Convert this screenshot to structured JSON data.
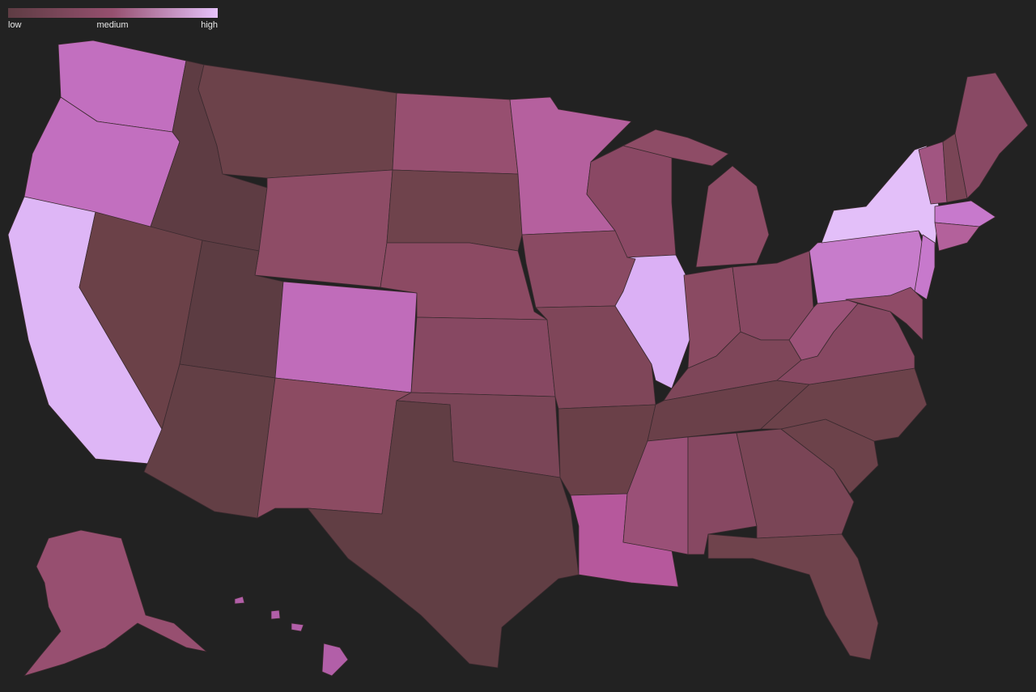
{
  "legend": {
    "labels": [
      "low",
      "medium",
      "high"
    ],
    "colors": [
      "#5e3c43",
      "#96506f",
      "#e6c2fb"
    ]
  },
  "region_colors": [
    "#c26fbf",
    "#c26fbf",
    "#deb6f6",
    "#5e3c43",
    "#6c424a",
    "#8e4c66",
    "#6b4148",
    "#5c3c42",
    "#633f45",
    "#c06cba",
    "#8c4b62",
    "#974f70",
    "#6f434c",
    "#8c4a63",
    "#874862",
    "#7a4557",
    "#613e44",
    "#b5609e",
    "#8a4a63",
    "#7f4659",
    "#6a4048",
    "#b6589c",
    "#8a4864",
    "#dbb0f5",
    "#8e4c66",
    "#8e4c66",
    "#8a4a62",
    "#874862",
    "#7e4659",
    "#6a4049",
    "#9a5077",
    "#874862",
    "#7a4556",
    "#6f434c",
    "#6c424a",
    "#6c424a",
    "#874862",
    "#9b5278",
    "#c77ccb",
    "#e3bff9",
    "#c779cc",
    "#8f4b67",
    "#a15581",
    "#7a4556",
    "#894964",
    "#c779cc",
    "#b3619b",
    "#974f70",
    "#b25fa8"
  ]
}
